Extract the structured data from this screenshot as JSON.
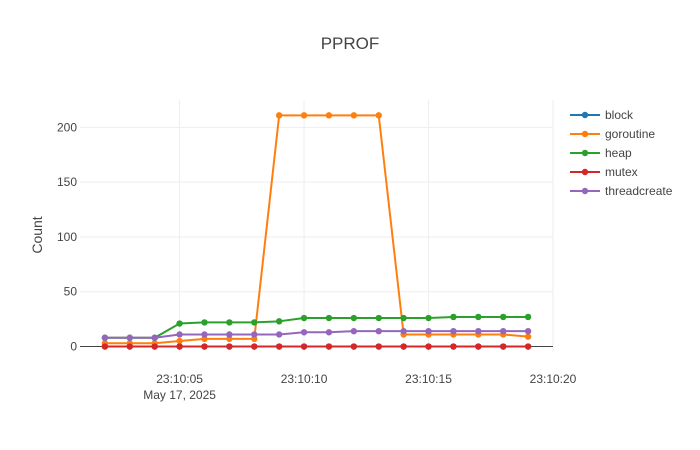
{
  "chart_data": {
    "type": "line",
    "title": "PPROF",
    "xlabel": "",
    "ylabel": "Count",
    "x_start": "2025-05-17T23:10:02",
    "x_step_seconds": 1,
    "x": [
      "23:10:02",
      "23:10:03",
      "23:10:04",
      "23:10:05",
      "23:10:06",
      "23:10:07",
      "23:10:08",
      "23:10:09",
      "23:10:10",
      "23:10:11",
      "23:10:12",
      "23:10:13",
      "23:10:14",
      "23:10:15",
      "23:10:16",
      "23:10:17",
      "23:10:18",
      "23:10:19"
    ],
    "x_ticks": [
      "23:10:05",
      "23:10:10",
      "23:10:15",
      "23:10:20"
    ],
    "x_date_label": "May 17, 2025",
    "xlim": [
      "23:10:01",
      "23:10:20"
    ],
    "y_ticks": [
      0,
      50,
      100,
      150,
      200
    ],
    "ylim": [
      -5,
      225
    ],
    "grid": true,
    "legend_position": "right",
    "series": [
      {
        "name": "block",
        "color": "#1f77b4",
        "values": [
          0,
          0,
          0,
          0,
          0,
          0,
          0,
          0,
          0,
          0,
          0,
          0,
          0,
          0,
          0,
          0,
          0,
          0
        ]
      },
      {
        "name": "goroutine",
        "color": "#ff7f0e",
        "values": [
          3,
          3,
          3,
          5,
          7,
          7,
          7,
          211,
          211,
          211,
          211,
          211,
          11,
          11,
          11,
          11,
          11,
          9
        ]
      },
      {
        "name": "heap",
        "color": "#2ca02c",
        "values": [
          8,
          8,
          8,
          21,
          22,
          22,
          22,
          23,
          26,
          26,
          26,
          26,
          26,
          26,
          27,
          27,
          27,
          27
        ]
      },
      {
        "name": "mutex",
        "color": "#d62728",
        "values": [
          0,
          0,
          0,
          0,
          0,
          0,
          0,
          0,
          0,
          0,
          0,
          0,
          0,
          0,
          0,
          0,
          0,
          0
        ]
      },
      {
        "name": "threadcreate",
        "color": "#9467bd",
        "values": [
          8,
          8,
          8,
          11,
          11,
          11,
          11,
          11,
          13,
          13,
          14,
          14,
          14,
          14,
          14,
          14,
          14,
          14
        ]
      }
    ]
  }
}
